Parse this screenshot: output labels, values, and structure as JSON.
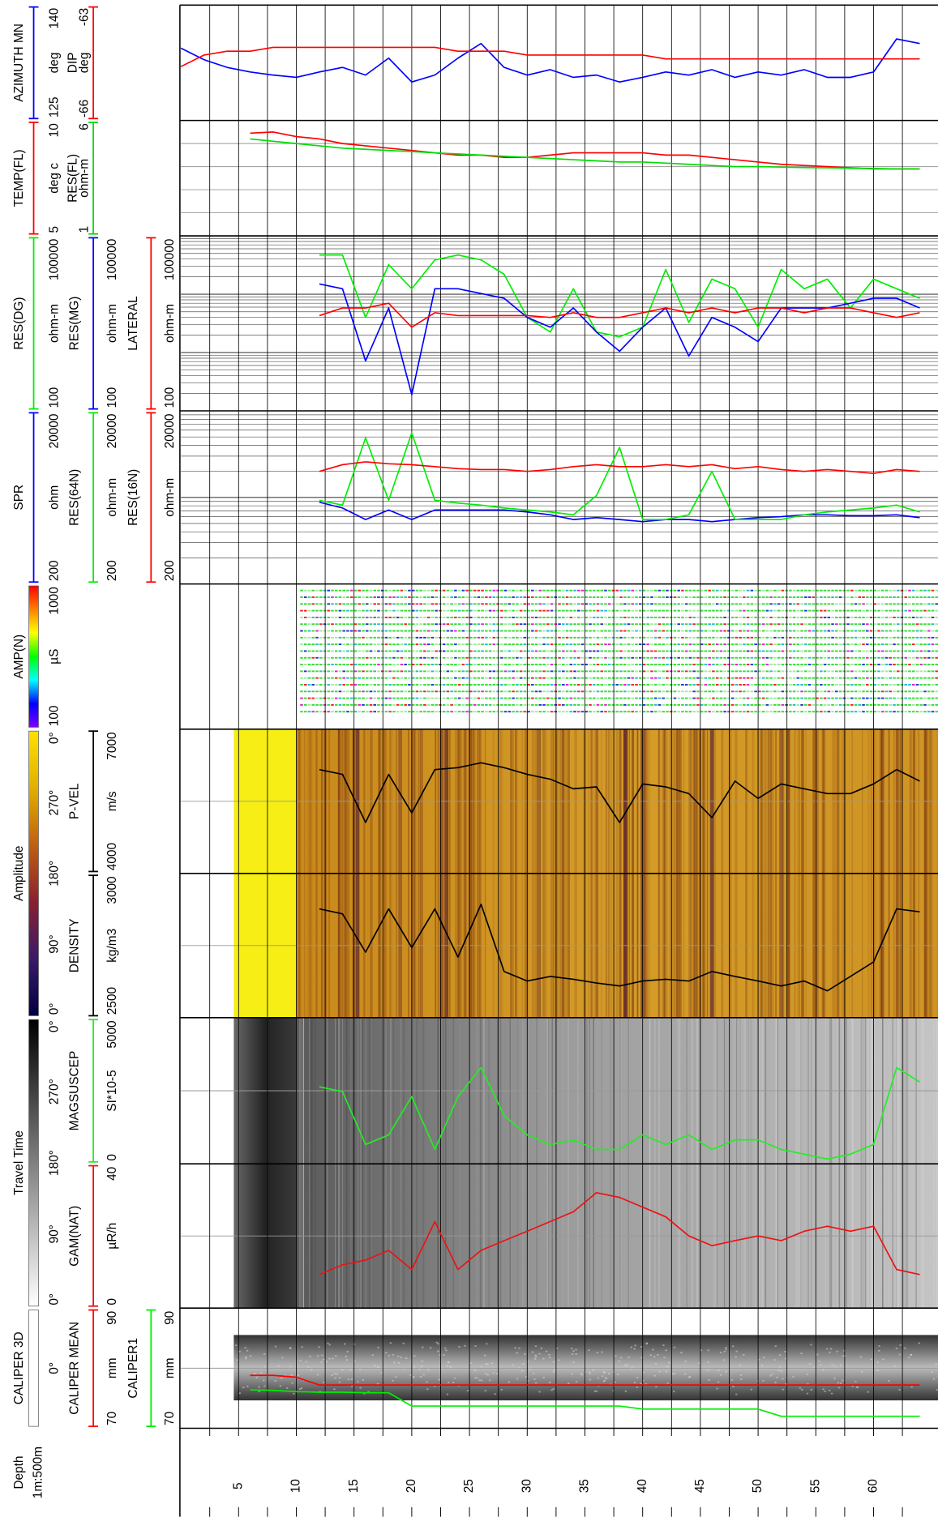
{
  "depth_axis": {
    "name": "Depth",
    "scale": "1m:500m",
    "xlim": [
      0,
      65
    ],
    "xticks": [
      5,
      10,
      15,
      20,
      25,
      30,
      35,
      40,
      45,
      50,
      55,
      60
    ],
    "minor_xticks": [
      2.5,
      7.5,
      12.5,
      17.5,
      22.5,
      27.5,
      32.5,
      37.5,
      42.5,
      47.5,
      52.5,
      57.5,
      62.5
    ]
  },
  "chart_data": [
    {
      "type": "line",
      "x": [
        0,
        2,
        4,
        6,
        8,
        10,
        12,
        14,
        16,
        18,
        20,
        22,
        24,
        26,
        28,
        30,
        32,
        34,
        36,
        38,
        40,
        42,
        44,
        46,
        48,
        50,
        52,
        54,
        56,
        58,
        60,
        62,
        64
      ],
      "series": [
        {
          "name": "AZIMUTH MN",
          "unit": "deg",
          "ylim": [
            125,
            140
          ],
          "color": "#0000ff",
          "values": [
            134.4,
            132.9,
            131.9,
            131.3,
            130.9,
            130.6,
            131.3,
            131.9,
            130.9,
            133.1,
            130.0,
            130.9,
            133.1,
            135.0,
            131.9,
            130.9,
            131.6,
            130.6,
            130.9,
            130.0,
            130.6,
            131.3,
            130.9,
            131.6,
            130.6,
            131.3,
            130.9,
            131.6,
            130.6,
            130.6,
            131.3,
            135.6,
            135.0
          ]
        },
        {
          "name": "DIP",
          "unit": "deg",
          "ylim": [
            -66,
            -63
          ],
          "color": "#ff0000",
          "values": [
            -64.6,
            -64.3,
            -64.2,
            -64.2,
            -64.1,
            -64.1,
            -64.1,
            -64.1,
            -64.1,
            -64.1,
            -64.1,
            -64.1,
            -64.2,
            -64.2,
            -64.2,
            -64.3,
            -64.3,
            -64.3,
            -64.3,
            -64.3,
            -64.3,
            -64.4,
            -64.4,
            -64.4,
            -64.4,
            -64.4,
            -64.4,
            -64.4,
            -64.4,
            -64.4,
            -64.4,
            -64.4,
            -64.4
          ]
        }
      ]
    },
    {
      "type": "line",
      "x": [
        0,
        2,
        4,
        6,
        8,
        10,
        12,
        14,
        16,
        18,
        20,
        22,
        24,
        26,
        28,
        30,
        32,
        34,
        36,
        38,
        40,
        42,
        44,
        46,
        48,
        50,
        52,
        54,
        56,
        58,
        60,
        62,
        64
      ],
      "yticks": [
        6,
        7,
        8,
        9
      ],
      "series": [
        {
          "name": "TEMP(FL)",
          "unit": "deg c",
          "ylim": [
            5,
            10
          ],
          "color": "#ff0000",
          "values": [
            null,
            null,
            null,
            9.45,
            9.5,
            9.3,
            9.2,
            9.0,
            8.9,
            8.8,
            8.7,
            8.6,
            8.5,
            8.5,
            8.4,
            8.4,
            8.5,
            8.6,
            8.6,
            8.6,
            8.6,
            8.5,
            8.5,
            8.4,
            8.3,
            8.2,
            8.1,
            8.05,
            8.0,
            7.95,
            7.9,
            7.9,
            7.9
          ]
        },
        {
          "name": "RES(FL)",
          "unit": "ohm-m",
          "ylim": [
            1,
            6
          ],
          "color": "#00dd00",
          "values": [
            null,
            null,
            null,
            5.2,
            5.1,
            5.0,
            4.9,
            4.8,
            4.75,
            4.7,
            4.65,
            4.6,
            4.55,
            4.5,
            4.45,
            4.4,
            4.35,
            4.3,
            4.25,
            4.2,
            4.2,
            4.15,
            4.1,
            4.05,
            4.0,
            4.0,
            3.98,
            3.96,
            3.95,
            3.93,
            3.92,
            3.9,
            3.9
          ]
        }
      ]
    },
    {
      "type": "line",
      "log_scale": true,
      "x": [
        0,
        2,
        4,
        6,
        8,
        10,
        12,
        14,
        16,
        18,
        20,
        22,
        24,
        26,
        28,
        30,
        32,
        34,
        36,
        38,
        40,
        42,
        44,
        46,
        48,
        50,
        52,
        54,
        56,
        58,
        60,
        62,
        64
      ],
      "yticks": [
        100,
        1000,
        10000,
        100000
      ],
      "series": [
        {
          "name": "RES(DG)",
          "unit": "ohm-m",
          "ylim": [
            100,
            100000
          ],
          "color": "#00ee00",
          "values": [
            null,
            null,
            null,
            null,
            null,
            null,
            47000,
            47000,
            4000,
            32000,
            12400,
            38700,
            47000,
            38700,
            21900,
            4000,
            2250,
            12400,
            2250,
            1860,
            2720,
            26500,
            3280,
            18100,
            12400,
            2720,
            26500,
            12400,
            18100,
            5800,
            18100,
            12400,
            8500
          ]
        },
        {
          "name": "RES(MG)",
          "unit": "ohm-m",
          "ylim": [
            100,
            100000
          ],
          "color": "#0000ff",
          "values": [
            null,
            null,
            null,
            null,
            null,
            null,
            15000,
            12400,
            720,
            5800,
            190,
            12400,
            12400,
            10300,
            8500,
            4000,
            2720,
            5800,
            2250,
            1050,
            2720,
            5800,
            870,
            4000,
            2720,
            1540,
            5800,
            5800,
            5800,
            7000,
            8500,
            8500,
            5800
          ]
        },
        {
          "name": "LATERAL",
          "unit": "ohm-m",
          "ylim": [
            100,
            100000
          ],
          "color": "#ff0000",
          "values": [
            null,
            null,
            null,
            null,
            null,
            null,
            4300,
            5800,
            5800,
            7000,
            2720,
            4800,
            4300,
            4300,
            4300,
            4300,
            4000,
            4800,
            4000,
            4000,
            4800,
            5800,
            4800,
            5800,
            4800,
            5800,
            5800,
            4800,
            5800,
            5800,
            4800,
            4000,
            4800
          ]
        }
      ]
    },
    {
      "type": "line",
      "log_scale": true,
      "x": [
        0,
        2,
        4,
        6,
        8,
        10,
        12,
        14,
        16,
        18,
        20,
        22,
        24,
        26,
        28,
        30,
        32,
        34,
        36,
        38,
        40,
        42,
        44,
        46,
        48,
        50,
        52,
        54,
        56,
        58,
        60,
        62,
        64
      ],
      "yticks": [
        200,
        2000,
        20000
      ],
      "series": [
        {
          "name": "SPR",
          "unit": "ohm",
          "ylim": [
            200,
            20000
          ],
          "color": "#0000ff",
          "values": [
            null,
            null,
            null,
            null,
            null,
            null,
            1760,
            1510,
            1110,
            1430,
            1110,
            1430,
            1430,
            1430,
            1430,
            1360,
            1260,
            1110,
            1170,
            1110,
            1050,
            1110,
            1110,
            1050,
            1110,
            1170,
            1200,
            1260,
            1260,
            1230,
            1230,
            1260,
            1170
          ]
        },
        {
          "name": "RES(64N)",
          "unit": "ohm-m",
          "ylim": [
            200,
            20000
          ],
          "color": "#00ee00",
          "values": [
            null,
            null,
            null,
            null,
            null,
            null,
            1850,
            1630,
            9780,
            1850,
            11100,
            1850,
            1720,
            1630,
            1510,
            1430,
            1360,
            1260,
            2100,
            7570,
            1110,
            1110,
            1260,
            4000,
            1110,
            1110,
            1110,
            1260,
            1360,
            1430,
            1510,
            1630,
            1360
          ]
        },
        {
          "name": "RES(16N)",
          "unit": "ohm-m",
          "ylim": [
            200,
            20000
          ],
          "color": "#ff0000",
          "values": [
            null,
            null,
            null,
            null,
            null,
            null,
            4000,
            4770,
            5150,
            4900,
            4770,
            4540,
            4300,
            4200,
            4200,
            4000,
            4200,
            4540,
            4770,
            4540,
            4540,
            4770,
            4540,
            4770,
            4300,
            4540,
            4200,
            4000,
            4200,
            4000,
            3790,
            4200,
            4000
          ]
        }
      ]
    },
    {
      "type": "heatmap",
      "name": "AMP(N)",
      "unit": "µS",
      "colorbar_range": [
        100,
        1000
      ],
      "colormap": [
        "#8000ff",
        "#0000ff",
        "#00ffff",
        "#00ff00",
        "#ffff00",
        "#ff8000",
        "#ff0000"
      ]
    },
    {
      "type": "heatmap",
      "name": "Amplitude",
      "colorbar_labels": [
        "0°",
        "90°",
        "180°",
        "270°",
        "0°"
      ],
      "colormap": [
        "#000040",
        "#3a1a6a",
        "#8a2030",
        "#c06010",
        "#e0b000",
        "#ffe000"
      ]
    },
    {
      "type": "line",
      "x": [
        0,
        2,
        4,
        6,
        8,
        10,
        12,
        14,
        16,
        18,
        20,
        22,
        24,
        26,
        28,
        30,
        32,
        34,
        36,
        38,
        40,
        42,
        44,
        46,
        48,
        50,
        52,
        54,
        56,
        58,
        60,
        62,
        64
      ],
      "yticks": [
        5500
      ],
      "series": [
        {
          "name": "P-VEL",
          "unit": "m/s",
          "ylim": [
            4000,
            7000
          ],
          "color": "#000000",
          "values": [
            null,
            null,
            null,
            null,
            null,
            null,
            6160,
            6060,
            5060,
            6060,
            5260,
            6160,
            6200,
            6300,
            6200,
            6060,
            5960,
            5760,
            5800,
            5060,
            5860,
            5800,
            5660,
            5160,
            5920,
            5560,
            5860,
            5760,
            5660,
            5660,
            5860,
            6160,
            5920
          ]
        }
      ]
    },
    {
      "type": "line",
      "x": [
        0,
        2,
        4,
        6,
        8,
        10,
        12,
        14,
        16,
        18,
        20,
        22,
        24,
        26,
        28,
        30,
        32,
        34,
        36,
        38,
        40,
        42,
        44,
        46,
        48,
        50,
        52,
        54,
        56,
        58,
        60,
        62,
        64
      ],
      "yticks": [
        2750
      ],
      "series": [
        {
          "name": "DENSITY",
          "unit": "kg/m3",
          "ylim": [
            2500,
            3000
          ],
          "color": "#000000",
          "values": [
            null,
            null,
            null,
            null,
            null,
            null,
            2877,
            2860,
            2727,
            2877,
            2743,
            2877,
            2710,
            2893,
            2660,
            2627,
            2643,
            2633,
            2620,
            2610,
            2627,
            2633,
            2627,
            2660,
            2643,
            2627,
            2610,
            2627,
            2593,
            2643,
            2693,
            2877,
            2867
          ]
        }
      ]
    },
    {
      "type": "heatmap",
      "name": "Travel Time",
      "colorbar_labels": [
        "0°",
        "90°",
        "180°",
        "270°",
        "0°"
      ],
      "colormap": [
        "#ffffff",
        "#000000"
      ]
    },
    {
      "type": "line",
      "x": [
        0,
        2,
        4,
        6,
        8,
        10,
        12,
        14,
        16,
        18,
        20,
        22,
        24,
        26,
        28,
        30,
        32,
        34,
        36,
        38,
        40,
        42,
        44,
        46,
        48,
        50,
        52,
        54,
        56,
        58,
        60,
        62,
        64
      ],
      "yticks": [
        2500
      ],
      "series": [
        {
          "name": "MAGSUSCEP",
          "unit": "SI*10-5",
          "ylim": [
            0,
            5000
          ],
          "color": "#22ee22",
          "values": [
            null,
            null,
            null,
            null,
            null,
            null,
            2630,
            2470,
            660,
            990,
            2300,
            490,
            2300,
            3290,
            1650,
            990,
            660,
            820,
            490,
            490,
            990,
            660,
            990,
            490,
            820,
            820,
            490,
            330,
            160,
            330,
            660,
            3290,
            2800
          ]
        }
      ]
    },
    {
      "type": "line",
      "x": [
        0,
        2,
        4,
        6,
        8,
        10,
        12,
        14,
        16,
        18,
        20,
        22,
        24,
        26,
        28,
        30,
        32,
        34,
        36,
        38,
        40,
        42,
        44,
        46,
        48,
        50,
        52,
        54,
        56,
        58,
        60,
        62,
        64
      ],
      "yticks": [
        20
      ],
      "series": [
        {
          "name": "GAM(NAT)",
          "unit": "µR/h",
          "ylim": [
            0,
            40
          ],
          "color": "#ee1111",
          "values": [
            null,
            null,
            null,
            null,
            null,
            null,
            9.3,
            12,
            13.3,
            16,
            10.7,
            24,
            10.7,
            16,
            18.7,
            21.3,
            24,
            26.7,
            32,
            30.7,
            28,
            25.3,
            20,
            17.3,
            18.7,
            20,
            18.7,
            21.3,
            22.7,
            21.3,
            22.7,
            10.7,
            9.3
          ]
        }
      ]
    },
    {
      "type": "heatmap",
      "name": "CALIPER 3D",
      "colorbar_labels": [
        "0°"
      ],
      "colormap": [
        "#ffffff"
      ]
    },
    {
      "type": "line",
      "x": [
        0,
        2,
        4,
        6,
        8,
        10,
        12,
        14,
        16,
        18,
        20,
        22,
        24,
        26,
        28,
        30,
        32,
        34,
        36,
        38,
        40,
        42,
        44,
        46,
        48,
        50,
        52,
        54,
        56,
        58,
        60,
        62,
        64
      ],
      "yticks": [
        80
      ],
      "series": [
        {
          "name": "CALIPER MEAN",
          "unit": "mm",
          "ylim": [
            70,
            90
          ],
          "color": "#ff0000",
          "values": [
            null,
            null,
            null,
            78.8,
            78.8,
            78.5,
            77.2,
            77.2,
            77.2,
            77.2,
            77.2,
            77.2,
            77.2,
            77.2,
            77.2,
            77.2,
            77.2,
            77.2,
            77.2,
            77.2,
            77.2,
            77.2,
            77.2,
            77.2,
            77.2,
            77.2,
            77.2,
            77.2,
            77.2,
            77.2,
            77.2,
            77.2,
            77.2
          ]
        },
        {
          "name": "CALIPER1",
          "unit": "mm",
          "ylim": [
            70,
            90
          ],
          "color": "#00ee00",
          "values": [
            null,
            null,
            null,
            76.4,
            76.3,
            76.1,
            76.0,
            76.0,
            75.9,
            75.9,
            73.7,
            73.7,
            73.7,
            73.7,
            73.7,
            73.7,
            73.7,
            73.7,
            73.7,
            73.7,
            73.2,
            73.2,
            73.2,
            73.2,
            73.2,
            73.2,
            72.0,
            72.0,
            72.0,
            72.0,
            72.0,
            72.0,
            72.0
          ]
        }
      ]
    }
  ]
}
